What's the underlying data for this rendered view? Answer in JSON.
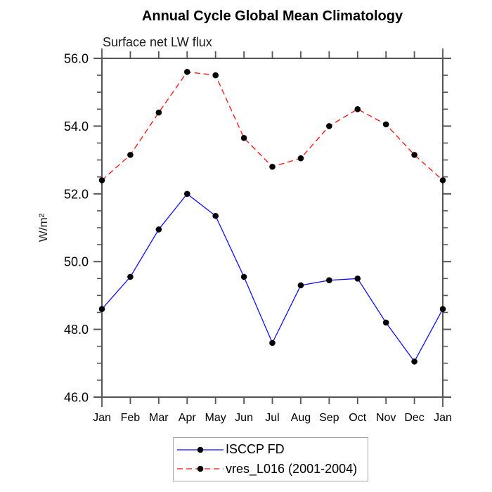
{
  "page": {
    "background_color": "#ffffff",
    "text_color": "#000000"
  },
  "style": {
    "axis_color": "#555555",
    "legend_border_color": "#a6a6a6",
    "marker_color": "#000000",
    "series_colors": {
      "isccp_fd": "#0d0dff",
      "vres_l016": "#ff0d0d"
    }
  },
  "chart_data": {
    "type": "line",
    "title": "Annual Cycle Global Mean Climatology",
    "subtitle": "Surface net LW flux",
    "ylabel": "W/m²",
    "xlabel": "",
    "x_categories": [
      "Jan",
      "Feb",
      "Mar",
      "Apr",
      "May",
      "Jun",
      "Jul",
      "Aug",
      "Sep",
      "Oct",
      "Nov",
      "Dec",
      "Jan"
    ],
    "ylim": [
      46.0,
      56.0
    ],
    "y_major_ticks": [
      46.0,
      48.0,
      50.0,
      52.0,
      54.0,
      56.0
    ],
    "y_tick_labels": [
      "46.0",
      "48.0",
      "50.0",
      "52.0",
      "54.0",
      "56.0"
    ],
    "y_minor_step": 0.5,
    "grid": false,
    "legend_position": "bottom-center",
    "series": [
      {
        "name": "ISCCP FD",
        "color": "#0d0dff",
        "line_style": "solid",
        "marker": "filled-circle",
        "marker_color": "#000000",
        "values": [
          48.6,
          49.55,
          50.95,
          52.0,
          51.35,
          49.55,
          47.6,
          49.3,
          49.45,
          49.5,
          48.2,
          47.05,
          48.6
        ]
      },
      {
        "name": "vres_L016 (2001-2004)",
        "color": "#ff0d0d",
        "line_style": "dashed",
        "marker": "filled-circle",
        "marker_color": "#000000",
        "values": [
          52.4,
          53.15,
          54.4,
          55.6,
          55.5,
          53.65,
          52.8,
          53.05,
          54.0,
          54.5,
          54.05,
          53.15,
          52.4
        ]
      }
    ]
  }
}
